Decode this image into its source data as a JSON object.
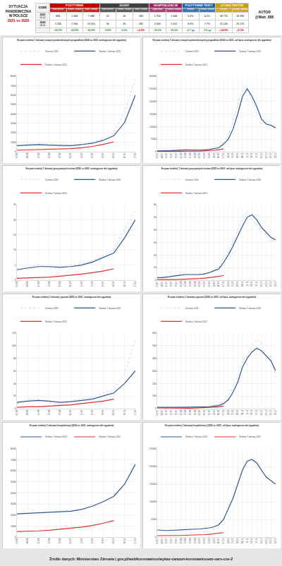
{
  "header": {
    "title": [
      "SYTUACJA",
      "PANDEMICZNA",
      "W POLSCE",
      "2021 vs 2020"
    ],
    "author": [
      "AUTOR",
      "@Matt_888"
    ],
    "corner": "DZIEŃ",
    "groups": [
      {
        "name": "POZYTYWNE",
        "color": "#c00000",
        "columns": [
          "Nowe dzienne",
          "Średnia 7-dniowa",
          "Suma 7-dniowa"
        ]
      },
      {
        "name": "ZGONY",
        "color": "#404040",
        "columns": [
          "Nowe dzienne",
          "Średnia 7-dniowa",
          "Suma 7-dniowa"
        ]
      },
      {
        "name": "HOSPITALIZACJE",
        "color": "#9c1f5e",
        "columns": [
          "Zajęte łóżka",
          "Średnia 7-dniowa"
        ]
      },
      {
        "name": "POZYTYWNE TESTY",
        "color": "#1f5fa8",
        "columns": [
          "Dzienne",
          "Średnia 7-dniowa"
        ]
      },
      {
        "name": "LICZBA TESTÓW",
        "color": "#c89b00",
        "columns": [
          "Dzienne",
          "Średnia 7-dniowa"
        ]
      }
    ],
    "rows": [
      {
        "label": "2021",
        "date": "05.10",
        "values": [
          "884",
          "1 084",
          "7 588",
          "31",
          "26",
          "183",
          "1 703",
          "1 568",
          "3,2%",
          "4,1%",
          "28 776",
          "26 396"
        ]
      },
      {
        "label": "2020",
        "date": "06.10",
        "values": [
          "2 236",
          "1 930",
          "13 510",
          "34",
          "26",
          "182",
          "2 643",
          "2 412",
          "8,9%",
          "7,7%",
          "25 140",
          "25 072"
        ]
      },
      {
        "values": [
          "-60,5%",
          "-43,8%",
          "-43,8%",
          "-8,8%",
          "0,0%",
          "+0,5%",
          "-35,6%",
          "-35,0%",
          "-5,7 pp",
          "-3,6 pp",
          "+14,5%",
          "+5,3%"
        ],
        "colors": [
          "#2e8b2e",
          "#2e8b2e",
          "#2e8b2e",
          "#2e8b2e",
          "#2e8b2e",
          "#d00000",
          "#2e8b2e",
          "#2e8b2e",
          "#2e8b2e",
          "#2e8b2e",
          "#d00000",
          "#d00000"
        ]
      }
    ]
  },
  "chart_data": [
    {
      "type": "line",
      "title": "Krzywa średniej 7-dniowej nowych potwierdzonych przypadków (2020 vs 2021, analogiczne dni tygodnia)",
      "categories": [
        "01.08",
        "08.08",
        "15.08",
        "22.08",
        "29.08",
        "05.09",
        "12.09",
        "19.09",
        "26.09",
        "03.10",
        "10.10",
        "17.10"
      ],
      "series": [
        {
          "name": "Dzienne 2020",
          "color": "#b4c7e7",
          "line_style": "dotted",
          "values": [
            600,
            850,
            800,
            900,
            550,
            600,
            800,
            1000,
            1350,
            2000,
            4300,
            7700
          ]
        },
        {
          "name": "Średnia 7-dniowa 2020",
          "color": "#2f5597",
          "line_style": "solid",
          "values": [
            650,
            700,
            750,
            700,
            650,
            650,
            750,
            900,
            1200,
            1700,
            3100,
            6000
          ]
        },
        {
          "name": "Średnia 7-dniowa 2021",
          "color": "#e0302f",
          "line_style": "solid",
          "values": [
            170,
            200,
            210,
            230,
            260,
            330,
            420,
            560,
            780,
            1050,
            null,
            null
          ]
        }
      ],
      "ylim": [
        0,
        8000
      ],
      "yticks": [
        0,
        1000,
        2000,
        3000,
        4000,
        5000,
        6000,
        7000,
        8000
      ],
      "grid": true,
      "legend": "top"
    },
    {
      "type": "line",
      "title": "Krzywa średniej 7-dniowej nowych potwierdzonych przypadków (2020 vs 2021, od lipca, analogiczne dni tygodnia)",
      "categories": [
        "01.07",
        "08.07",
        "15.07",
        "22.07",
        "29.07",
        "05.08",
        "12.08",
        "19.08",
        "26.08",
        "02.09",
        "09.09",
        "16.09",
        "23.09",
        "30.09",
        "07.10",
        "14.10",
        "21.10",
        "28.10",
        "04.11",
        "11.11",
        "18.11",
        "25.11",
        "02.12",
        "09.12",
        "16.12",
        "23.12"
      ],
      "series": [
        {
          "name": "Dzienne 2020",
          "color": "#b4c7e7",
          "line_style": "dotted",
          "values": [
            250,
            350,
            400,
            500,
            600,
            800,
            850,
            800,
            550,
            600,
            800,
            1000,
            1150,
            1550,
            4200,
            6500,
            12100,
            18800,
            24700,
            25200,
            19900,
            17200,
            14000,
            12000,
            11100,
            8800
          ]
        },
        {
          "name": "Średnia 7-dniowa 2020",
          "color": "#2f5597",
          "line_style": "solid",
          "values": [
            300,
            300,
            350,
            450,
            550,
            700,
            750,
            700,
            650,
            650,
            750,
            900,
            1200,
            1600,
            3000,
            5000,
            9000,
            15000,
            22000,
            25000,
            22000,
            18000,
            13000,
            11000,
            10500,
            9500
          ]
        },
        {
          "name": "Średnia 7-dniowa 2021",
          "color": "#e0302f",
          "line_style": "solid",
          "values": [
            90,
            80,
            90,
            100,
            130,
            180,
            200,
            220,
            230,
            260,
            330,
            420,
            560,
            780,
            1150,
            null,
            null,
            null,
            null,
            null,
            null,
            null,
            null,
            null,
            null,
            null
          ]
        }
      ],
      "ylim": [
        0,
        30000
      ],
      "yticks": [
        0,
        5000,
        10000,
        15000,
        20000,
        25000,
        30000
      ],
      "grid": true,
      "legend": "top"
    },
    {
      "type": "line",
      "title": "Krzywa średniej 7-dniowej pozytywnych testów (2020 vs 2021, analogiczne dni tygodnia)",
      "categories": [
        "01.08",
        "08.08",
        "15.08",
        "22.08",
        "29.08",
        "05.09",
        "12.09",
        "19.09",
        "26.09",
        "03.10",
        "10.10",
        "17.10"
      ],
      "series": [
        {
          "name": "Dzienne 2020",
          "color": "#b4c7e7",
          "line_style": "dotted",
          "values": [
            3,
            4.5,
            5,
            4.2,
            3.8,
            5,
            5.5,
            6.5,
            8,
            10,
            17,
            23
          ]
        },
        {
          "name": "Średnia 7-dniowa 2020",
          "color": "#2f5597",
          "line_style": "solid",
          "values": [
            3.5,
            4,
            4.5,
            4.5,
            4.3,
            4.5,
            5,
            6,
            7.5,
            9,
            14,
            20
          ]
        },
        {
          "name": "Średnia 7-dniowa 2021",
          "color": "#e0302f",
          "line_style": "solid",
          "values": [
            0.6,
            0.7,
            0.8,
            1,
            1.3,
            1.6,
            2,
            2.5,
            3,
            3.8,
            null,
            null
          ]
        }
      ],
      "ylim": [
        0,
        25
      ],
      "yticks": [
        0,
        5,
        10,
        15,
        20,
        25
      ],
      "grid": true,
      "legend": "top"
    },
    {
      "type": "line",
      "title": "Krzywa średniej 7-dniowej pozytywnych testów (2020 vs 2021, od lipca, analogiczne dni tygodnia)",
      "categories": [
        "01.07",
        "08.07",
        "15.07",
        "22.07",
        "29.07",
        "05.08",
        "12.08",
        "19.08",
        "26.08",
        "02.09",
        "09.09",
        "16.09",
        "23.09",
        "30.09",
        "07.10",
        "14.10",
        "21.10",
        "28.10",
        "04.11",
        "11.11",
        "18.11",
        "25.11",
        "02.12",
        "09.12",
        "16.12",
        "23.12"
      ],
      "series": [
        {
          "name": "Dzienne 2020",
          "color": "#b4c7e7",
          "line_style": "dotted",
          "values": [
            1.8,
            2.3,
            2.7,
            3.2,
            3.8,
            4.5,
            5,
            4.2,
            3.8,
            5,
            5.5,
            6.5,
            8,
            10,
            17,
            23,
            30,
            40,
            50,
            55,
            47,
            45,
            38,
            36,
            30,
            35
          ]
        },
        {
          "name": "Średnia 7-dniowa 2020",
          "color": "#2f5597",
          "line_style": "solid",
          "values": [
            2,
            2,
            2.5,
            3,
            3.5,
            4,
            4.5,
            4.5,
            4.3,
            4.5,
            5,
            6,
            7.5,
            9,
            14,
            20,
            27,
            35,
            43,
            50,
            52,
            48,
            42,
            38,
            34,
            32
          ]
        },
        {
          "name": "Średnia 7-dniowa 2021",
          "color": "#e0302f",
          "line_style": "solid",
          "values": [
            0.5,
            0.4,
            0.4,
            0.5,
            0.5,
            0.6,
            0.7,
            0.8,
            1,
            1.3,
            1.6,
            2,
            2.5,
            3,
            3.8,
            null,
            null,
            null,
            null,
            null,
            null,
            null,
            null,
            null,
            null,
            null
          ]
        }
      ],
      "ylim": [
        0,
        60
      ],
      "yticks": [
        0,
        10,
        20,
        30,
        40,
        50,
        60
      ],
      "grid": true,
      "legend": "top"
    },
    {
      "type": "line",
      "title": "Krzywa średniej 7-dniowej zgonów (2020 vs 2021, analogiczne dni tygodnia)",
      "categories": [
        "01.08",
        "08.08",
        "15.08",
        "22.08",
        "29.08",
        "05.09",
        "12.09",
        "19.09",
        "26.09",
        "03.10",
        "10.10",
        "17.10"
      ],
      "series": [
        {
          "name": "Dzienne 2020",
          "color": "#b4c7e7",
          "line_style": "dotted",
          "values": [
            8,
            15,
            14,
            10,
            6,
            12,
            16,
            18,
            25,
            30,
            55,
            110
          ]
        },
        {
          "name": "Średnia 7-dniowa 2020",
          "color": "#2f5597",
          "line_style": "solid",
          "values": [
            10,
            12,
            13,
            12,
            10,
            11,
            13,
            15,
            20,
            25,
            40,
            60
          ]
        },
        {
          "name": "Średnia 7-dniowa 2021",
          "color": "#e0302f",
          "line_style": "solid",
          "values": [
            2,
            3,
            3,
            4,
            5,
            6,
            8,
            10,
            12,
            15,
            null,
            null
          ]
        }
      ],
      "ylim": [
        0,
        120
      ],
      "yticks": [
        0,
        20,
        40,
        60,
        80,
        100,
        120
      ],
      "grid": true,
      "legend": "top"
    },
    {
      "type": "line",
      "title": "Krzywa średniej 7-dniowej zgonów (2020 vs 2021, od lipca, analogiczne dni tygodnia)",
      "categories": [
        "01.07",
        "08.07",
        "15.07",
        "22.07",
        "29.07",
        "05.08",
        "12.08",
        "19.08",
        "26.08",
        "02.09",
        "09.09",
        "16.09",
        "23.09",
        "30.09",
        "07.10",
        "14.10",
        "21.10",
        "28.10",
        "04.11",
        "11.11",
        "18.11",
        "25.11",
        "02.12",
        "09.12",
        "16.12",
        "23.12"
      ],
      "series": [
        {
          "name": "Dzienne 2020",
          "color": "#b4c7e7",
          "line_style": "dotted",
          "values": [
            8,
            10,
            7,
            11,
            12,
            14,
            13,
            15,
            10,
            12,
            16,
            18,
            25,
            30,
            60,
            110,
            170,
            260,
            380,
            420,
            500,
            550,
            520,
            400,
            420,
            250
          ]
        },
        {
          "name": "Średnia 7-dniowa 2020",
          "color": "#2f5597",
          "line_style": "solid",
          "values": [
            10,
            9,
            8,
            9,
            10,
            11,
            12,
            13,
            12,
            11,
            13,
            15,
            20,
            25,
            40,
            70,
            130,
            210,
            330,
            400,
            450,
            480,
            460,
            420,
            380,
            300
          ]
        },
        {
          "name": "Średnia 7-dniowa 2021",
          "color": "#e0302f",
          "line_style": "solid",
          "values": [
            6,
            5,
            4,
            3,
            3,
            3,
            4,
            4,
            5,
            6,
            8,
            10,
            12,
            15,
            20,
            null,
            null,
            null,
            null,
            null,
            null,
            null,
            null,
            null,
            null,
            null
          ]
        }
      ],
      "ylim": [
        0,
        600
      ],
      "yticks": [
        0,
        100,
        200,
        300,
        400,
        500,
        600
      ],
      "grid": true,
      "legend": "top"
    },
    {
      "type": "line",
      "title": "Krzywa średniej 7-dniowej hospitalizacji (2020 vs 2021, analogiczne dni tygodnia)",
      "categories": [
        "01.08",
        "08.08",
        "15.08",
        "22.08",
        "29.08",
        "05.09",
        "12.09",
        "19.09",
        "26.09",
        "03.10",
        "10.10",
        "17.10"
      ],
      "series": [
        {
          "name": "Średnia 7-dniowa 2020",
          "color": "#2f5597",
          "line_style": "solid",
          "values": [
            2100,
            2150,
            2200,
            2250,
            2300,
            2350,
            2500,
            2800,
            3200,
            3700,
            4800,
            6600
          ]
        },
        {
          "name": "Średnia 7-dniowa 2021",
          "color": "#e0302f",
          "line_style": "solid",
          "values": [
            500,
            520,
            560,
            620,
            700,
            780,
            900,
            1050,
            1250,
            1500,
            null,
            null
          ]
        }
      ],
      "ylim": [
        0,
        8000
      ],
      "yticks": [
        0,
        1000,
        2000,
        3000,
        4000,
        5000,
        6000,
        7000,
        8000
      ],
      "grid": true,
      "legend": "top"
    },
    {
      "type": "line",
      "title": "Krzywa średniej 7-dniowej hospitalizacji (2020 vs 2021, od lipca, analogiczne dni tygodnia)",
      "categories": [
        "01.07",
        "08.07",
        "15.07",
        "22.07",
        "29.07",
        "05.08",
        "12.08",
        "19.08",
        "26.08",
        "02.09",
        "09.09",
        "16.09",
        "23.09",
        "30.09",
        "07.10",
        "14.10",
        "21.10",
        "28.10",
        "04.11",
        "11.11",
        "18.11",
        "25.11",
        "02.12",
        "09.12",
        "16.12",
        "23.12"
      ],
      "series": [
        {
          "name": "Średnia 7-dniowa 2020",
          "color": "#2f5597",
          "line_style": "solid",
          "values": [
            2000,
            1900,
            1850,
            1900,
            2000,
            2100,
            2150,
            2200,
            2250,
            2300,
            2400,
            2600,
            2900,
            3500,
            5000,
            8000,
            11000,
            15000,
            19000,
            21500,
            22000,
            21000,
            19000,
            17000,
            16000,
            15000
          ]
        },
        {
          "name": "Średnia 7-dniowa 2021",
          "color": "#e0302f",
          "line_style": "solid",
          "values": [
            400,
            380,
            370,
            380,
            400,
            450,
            500,
            520,
            560,
            620,
            700,
            780,
            900,
            1050,
            1250,
            null,
            null,
            null,
            null,
            null,
            null,
            null,
            null,
            null,
            null,
            null
          ]
        }
      ],
      "ylim": [
        0,
        25000
      ],
      "yticks": [
        0,
        5000,
        10000,
        15000,
        20000,
        25000
      ],
      "grid": true,
      "legend": "top"
    }
  ],
  "footer": "Źródło danych: Ministerstwo Zdrowia | gov.pl/web/koronawirus/wykaz-zarazen-koronawirusem-sars-cov-2"
}
